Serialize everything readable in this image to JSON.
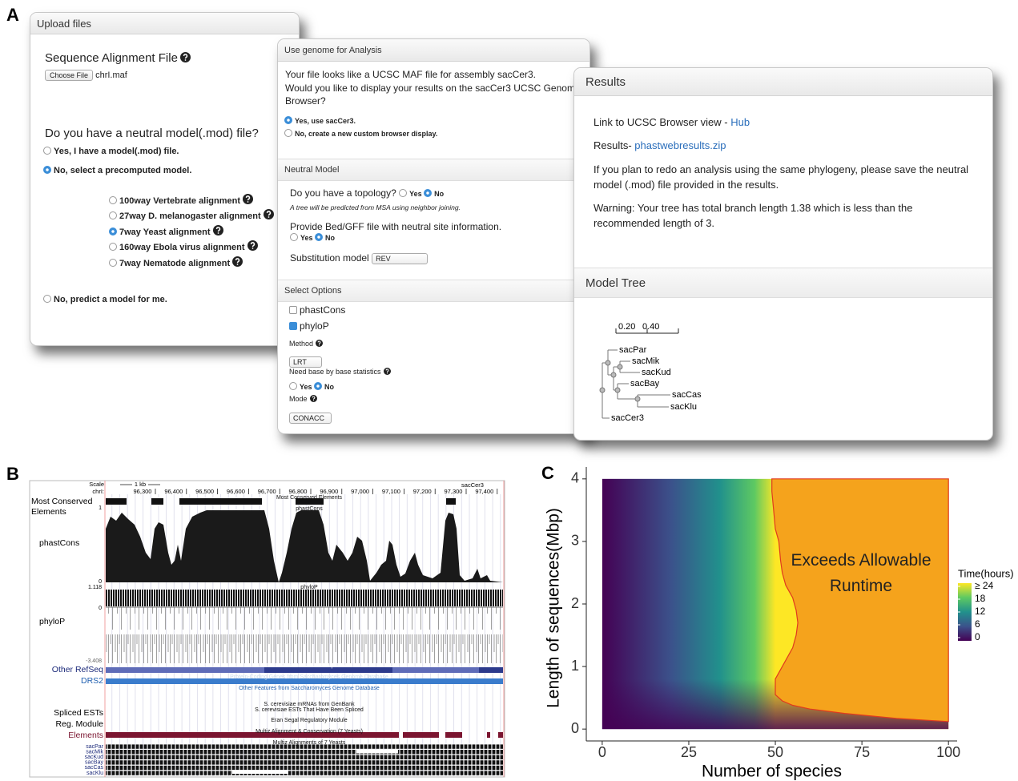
{
  "panel_labels": [
    "A",
    "B",
    "C"
  ],
  "upload": {
    "header": "Upload files",
    "file_label": "Sequence Alignment File",
    "button": "Choose File",
    "file_name": "chrI.maf",
    "question": "Do you have a neutral model(.mod) file?",
    "options": [
      "Yes, I have a model(.mod) file.",
      "No, select a precomputed model."
    ],
    "models": [
      "100way Vertebrate alignment",
      "27way D. melanogaster alignment",
      "7way Yeast alignment",
      "160way Ebola virus alignment",
      "7way Nematode alignment"
    ],
    "predict": "No, predict a model for me."
  },
  "genome": {
    "header": "Use genome for Analysis",
    "message": [
      "Your file looks like a UCSC MAF file for assembly sacCer3.",
      "Would you like to display your results on the sacCer3 UCSC Genome",
      "Browser?"
    ],
    "options": [
      "Yes, use sacCer3.",
      "No, create a new custom browser display."
    ],
    "neutral_header": "Neutral Model",
    "topology": "Do you have a topology?",
    "yes": "Yes",
    "no": "No",
    "tree_note": "A tree will be predicted from MSA using neighbor joining.",
    "bed": "Provide Bed/GFF file with neutral site information.",
    "substitution": "Substitution model",
    "substitution_value": "REV",
    "options_header": "Select Options",
    "methods": [
      "phastCons",
      "phyloP"
    ],
    "method": "Method",
    "method_value": "LRT",
    "base_stats": "Need base by base statistics",
    "mode": "Mode",
    "mode_value": "CONACC"
  },
  "results": {
    "header": "Results",
    "link_text": "Link to UCSC Browser view - ",
    "link": "Hub",
    "results_text": "Results- ",
    "results_link": "phastwebresults.zip",
    "note": [
      "If you plan to redo an analysis using the same phylogeny, please save the neutral",
      "model (.mod) file provided in the results."
    ],
    "warning": [
      "Warning: Your tree has total branch length 1.38 which is less than the",
      "recommended length of 3."
    ],
    "tree_header": "Model Tree",
    "scale_labels": [
      "0.20",
      "0.40"
    ],
    "leaves": [
      "sacPar",
      "sacMik",
      "sacKud",
      "sacBay",
      "sacCas",
      "sacKlu",
      "sacCer3"
    ]
  },
  "browser": {
    "scale": "Scale",
    "scale_size": "1 kb",
    "assembly": "sacCer3",
    "chrom": "chrI:",
    "positions": [
      "96,300",
      "96,400",
      "96,500",
      "96,600",
      "96,700",
      "96,800",
      "96,900",
      "97,000",
      "97,100",
      "97,200",
      "97,300",
      "97,400"
    ],
    "conserved_label": [
      "Most Conserved",
      "Elements"
    ],
    "phastcons_label": "phastCons",
    "phylop_label": "phyloP",
    "refseq_label": "Other RefSeq",
    "drs2_label": "DRS2",
    "ests_label": "Spliced ESTs",
    "reg_label": "Reg. Module",
    "elements_label": "Elements",
    "species": [
      "sacPar",
      "sacMik",
      "sacKud",
      "sacBay",
      "sacCas",
      "sacKlu"
    ],
    "scale_values": [
      "1",
      "0",
      "1.118",
      "0",
      "-3.408"
    ],
    "descriptions": [
      "Most Conserved Elements",
      "phastCons",
      "phyloP",
      "Non-S. cerevisiae RefSeq Genes",
      "Protein-Coding Genes from Saccharomyces Genome Database",
      "Other Features from Saccharomyces Genome Database",
      "S. cerevisiae mRNAs from GenBank",
      "S. cerevisiae ESTs That Have Been Spliced",
      "Eran Segal Regulatory Module",
      "Multiz Alignment & Conservation (7 Yeasts)",
      "Multiz Alignments of 7 Yeasts"
    ]
  },
  "chart_data": {
    "type": "heatmap",
    "xlabel": "Number of species",
    "ylabel": "Length of sequences(Mbp)",
    "xlim": [
      -4.6,
      102.5
    ],
    "ylim": [
      -0.19,
      4.19
    ],
    "xticks": [
      0,
      25,
      50,
      75,
      100
    ],
    "yticks": [
      0,
      1,
      2,
      3,
      4
    ],
    "annotation": "Exceeds Allowable Runtime",
    "region": {
      "color": "#f5a31c",
      "edge": "#e03a1e",
      "x": [
        49,
        49,
        49.5,
        50,
        51,
        51.5,
        52,
        53,
        55,
        56,
        56.5,
        56,
        55,
        53,
        52,
        50,
        50,
        52,
        55,
        60,
        70,
        85,
        100,
        100
      ],
      "y": [
        4,
        3.8,
        3.5,
        3.2,
        3,
        2.7,
        2.5,
        2.3,
        2.1,
        1.9,
        1.7,
        1.5,
        1.3,
        1.1,
        1.0,
        0.8,
        0.55,
        0.45,
        0.38,
        0.32,
        0.25,
        0.17,
        0.12,
        4
      ]
    },
    "colorbar": {
      "title": "Time(hours)",
      "ticks": [
        0,
        6,
        12,
        18,
        {
          "value": 24,
          "label": "≥ 24"
        }
      ],
      "colors": [
        "#440154",
        "#3b528b",
        "#21918c",
        "#5ec962",
        "#fde725"
      ]
    }
  }
}
